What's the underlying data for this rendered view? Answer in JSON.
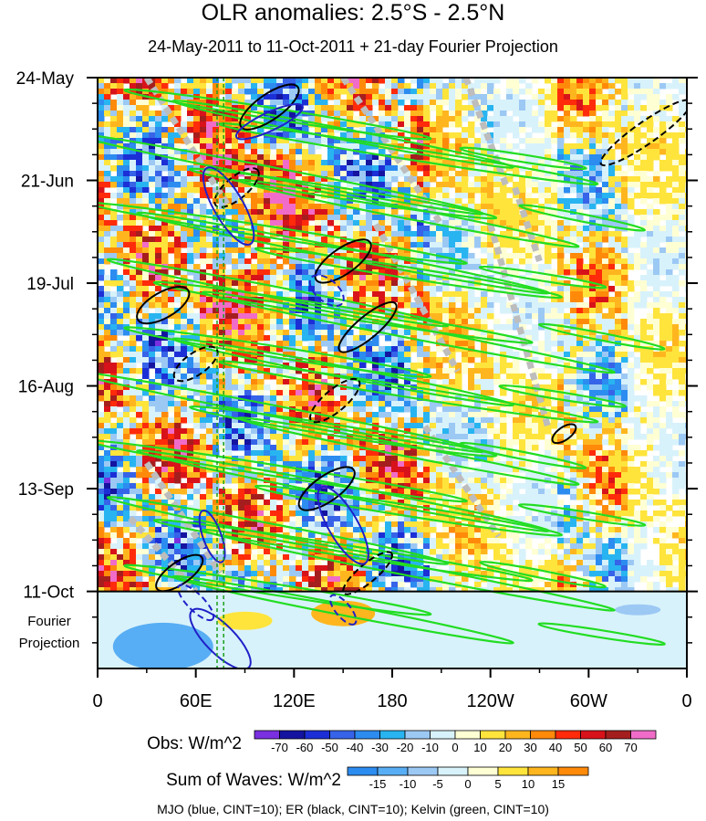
{
  "chart_data": {
    "type": "heatmap",
    "title": "OLR anomalies: 2.5°S - 2.5°N",
    "subtitle": "24-May-2011 to 11-Oct-2011 + 21-day Fourier Projection",
    "x_tick_labels": [
      "0",
      "60E",
      "120E",
      "180",
      "120W",
      "60W",
      "0"
    ],
    "x_tick_lon": [
      0,
      60,
      120,
      180,
      240,
      300,
      360
    ],
    "xlim": [
      0,
      360
    ],
    "y_tick_labels": [
      "24-May",
      "21-Jun",
      "19-Jul",
      "16-Aug",
      "13-Sep",
      "11-Oct"
    ],
    "y_tick_day": [
      0,
      28,
      56,
      84,
      112,
      140
    ],
    "ylim_days": [
      0,
      161
    ],
    "projection_label_line1": "Fourier",
    "projection_label_line2": "Projection",
    "projection_start_day": 140,
    "mjo_reference_lon": 75,
    "obs_colorbar": {
      "label": "Obs: W/m^2",
      "levels": [
        "-70",
        "-60",
        "-50",
        "-40",
        "-30",
        "-20",
        "-10",
        "0",
        "10",
        "20",
        "30",
        "40",
        "50",
        "60",
        "70"
      ],
      "colors": [
        "#7a2fe0",
        "#1414a0",
        "#1c2fd6",
        "#3663e8",
        "#2c8cf0",
        "#28b4f0",
        "#9cc8f4",
        "#d8f2fb",
        "#ffffd4",
        "#ffe43c",
        "#ffb61e",
        "#ff8a0a",
        "#ff2b0a",
        "#d8121a",
        "#a51e1e",
        "#f06cc8"
      ]
    },
    "waves_colorbar": {
      "label": "Sum of Waves: W/m^2",
      "levels": [
        "-15",
        "-10",
        "-5",
        "0",
        "5",
        "10",
        "15"
      ],
      "colors": [
        "#2c8cf0",
        "#58aef4",
        "#9cc8f4",
        "#d8f2fb",
        "#ffffd4",
        "#ffe43c",
        "#ffb61e",
        "#ff8a0a"
      ]
    },
    "footer": "MJO (blue, CINT=10); ER (black, CINT=10); Kelvin (green, CINT=10)",
    "series_colors": {
      "mjo": "#2020c8",
      "er": "#000000",
      "kelvin": "#22dd22",
      "missing": "#bdbdbd"
    }
  }
}
